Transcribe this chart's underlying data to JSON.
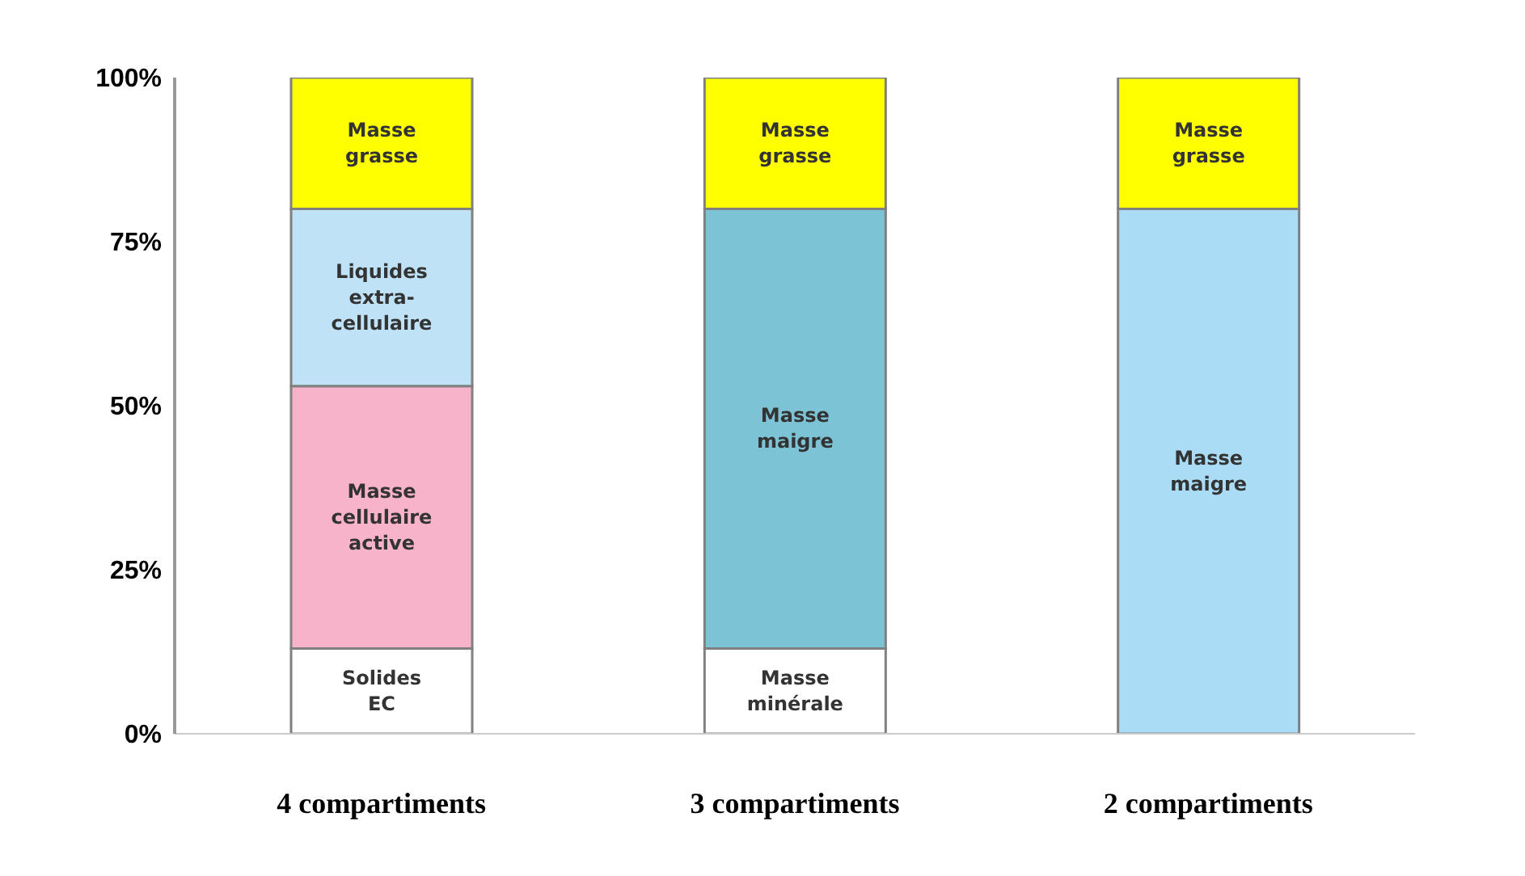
{
  "chart_data": {
    "type": "bar",
    "stacked": true,
    "categories": [
      "4 compartiments",
      "3 compartiments",
      "2 compartiments"
    ],
    "series": [
      {
        "name": "Solides EC",
        "colors": [
          "#ffffff",
          null,
          null
        ],
        "values": [
          13,
          null,
          null
        ]
      },
      {
        "name": "Masse cellulaire active",
        "colors": [
          "#f7b3c9",
          null,
          null
        ],
        "values": [
          40,
          null,
          null
        ]
      },
      {
        "name": "Liquides extra-cellulaire",
        "colors": [
          "#bfe2f6",
          null,
          null
        ],
        "values": [
          27,
          null,
          null
        ]
      },
      {
        "name": "Masse minérale",
        "colors": [
          null,
          "#ffffff",
          null
        ],
        "values": [
          null,
          13,
          null
        ]
      },
      {
        "name": "Masse maigre",
        "colors": [
          null,
          "#7cc3d6",
          "#aadcf6"
        ],
        "values": [
          null,
          67,
          80
        ]
      },
      {
        "name": "Masse grasse",
        "colors": [
          "#ffff00",
          "#ffff00",
          "#ffff00"
        ],
        "values": [
          20,
          20,
          20
        ]
      }
    ],
    "ylim": [
      0,
      100
    ],
    "yticks": [
      {
        "value": 0,
        "label": "0%"
      },
      {
        "value": 25,
        "label": "25%"
      },
      {
        "value": 50,
        "label": "50%"
      },
      {
        "value": 75,
        "label": "75%"
      },
      {
        "value": 100,
        "label": "100%"
      }
    ],
    "grid": false,
    "legend": false
  }
}
